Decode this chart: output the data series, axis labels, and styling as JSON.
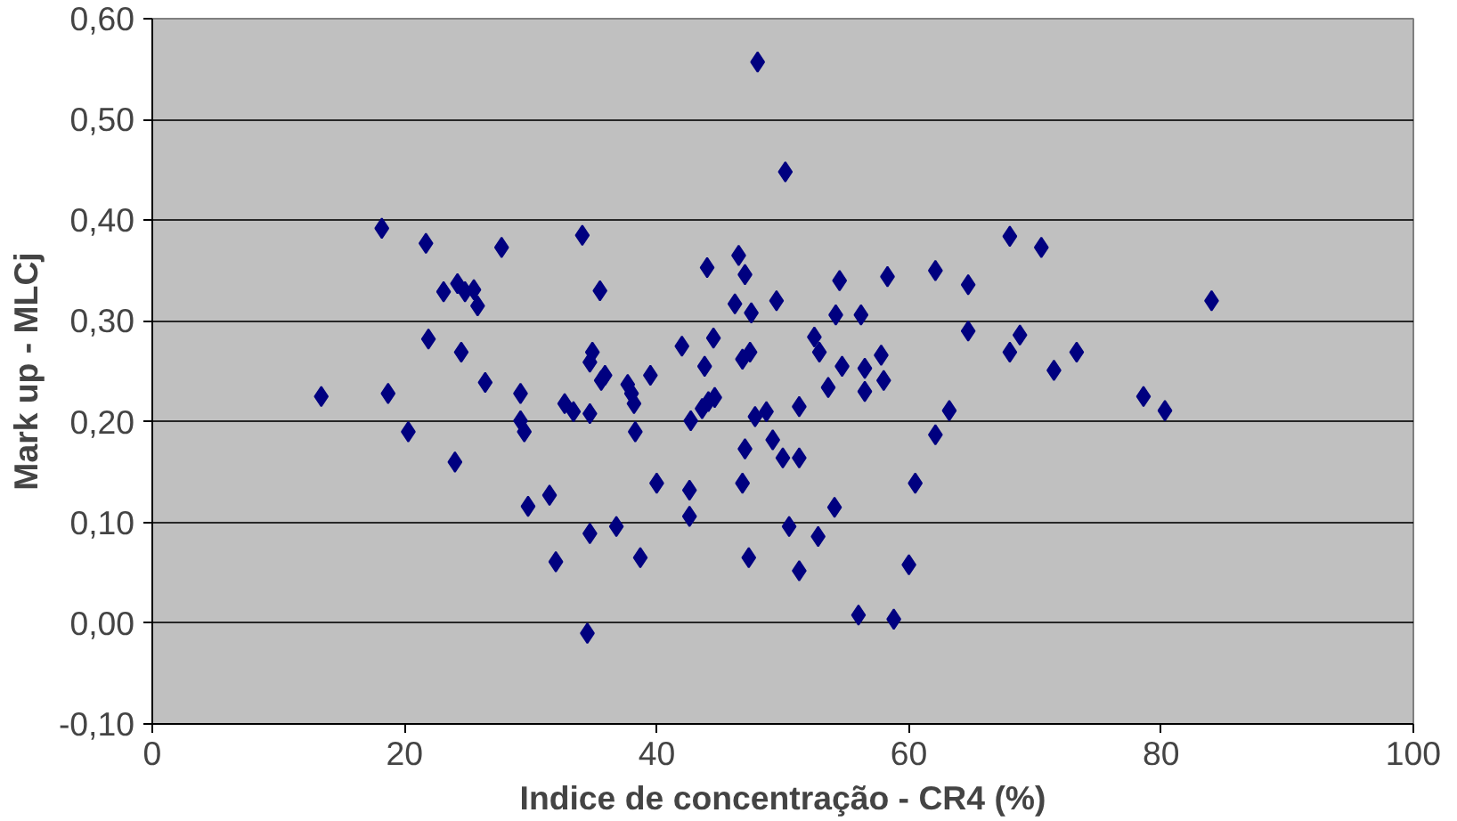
{
  "chart_data": {
    "type": "scatter",
    "xlabel": "Indice de concentração - CR4 (%)",
    "ylabel": "Mark up - MLCj",
    "xlim": [
      0,
      100
    ],
    "xticks": [
      0,
      20,
      40,
      60,
      80,
      100
    ],
    "ylim": [
      -0.1,
      0.6
    ],
    "yticks": [
      {
        "value": -0.1,
        "label": "-0,10"
      },
      {
        "value": 0,
        "label": "0,00"
      },
      {
        "value": 0.1,
        "label": "0,10"
      },
      {
        "value": 0.2,
        "label": "0,20"
      },
      {
        "value": 0.3,
        "label": "0,30"
      },
      {
        "value": 0.4,
        "label": "0,40"
      },
      {
        "value": 0.5,
        "label": "0,50"
      },
      {
        "value": 0.6,
        "label": "0,60"
      }
    ],
    "grid": "y",
    "marker": "diamond",
    "series": [
      {
        "color": "#000080",
        "x": [
          18.2,
          21.7,
          27.7,
          34.1,
          23.1,
          24.2,
          24.8,
          25.5,
          25.8,
          21.9,
          24.5,
          26.4,
          29.2,
          13.4,
          18.7,
          20.3,
          29.2,
          29.5,
          32.7,
          33.4,
          34.7,
          24.0,
          31.5,
          29.8,
          34.7,
          32.0,
          34.5,
          35.5,
          34.9,
          34.7,
          35.6,
          35.9,
          48.0,
          50.2,
          44.0,
          46.5,
          47.0,
          46.2,
          47.5,
          49.5,
          54.5,
          54.2,
          56.2,
          58.3,
          62.1,
          64.7,
          64.7,
          42.0,
          44.5,
          43.8,
          39.5,
          37.7,
          38.0,
          38.2,
          46.8,
          47.4,
          52.5,
          52.9,
          54.7,
          56.5,
          57.8,
          58.0,
          56.5,
          53.6,
          51.3,
          44.1,
          44.6,
          43.6,
          42.7,
          47.8,
          48.7,
          49.2,
          47.0,
          50.0,
          51.3,
          38.3,
          40.0,
          42.6,
          42.6,
          46.8,
          36.8,
          38.7,
          47.3,
          50.5,
          52.8,
          54.1,
          51.3,
          60.5,
          62.1,
          63.2,
          56.0,
          58.8,
          60.0,
          68.0,
          70.5,
          84.0,
          68.8,
          68.0,
          73.3,
          71.5,
          78.6,
          80.3
        ],
        "values": [
          0.392,
          0.377,
          0.373,
          0.385,
          0.329,
          0.337,
          0.329,
          0.331,
          0.315,
          0.282,
          0.269,
          0.239,
          0.228,
          0.225,
          0.228,
          0.19,
          0.201,
          0.19,
          0.218,
          0.21,
          0.208,
          0.16,
          0.127,
          0.116,
          0.089,
          0.061,
          -0.01,
          0.33,
          0.269,
          0.259,
          0.241,
          0.246,
          0.557,
          0.448,
          0.353,
          0.365,
          0.346,
          0.317,
          0.308,
          0.32,
          0.34,
          0.306,
          0.306,
          0.344,
          0.35,
          0.336,
          0.29,
          0.275,
          0.283,
          0.255,
          0.246,
          0.237,
          0.228,
          0.218,
          0.262,
          0.269,
          0.284,
          0.269,
          0.255,
          0.253,
          0.266,
          0.241,
          0.23,
          0.234,
          0.215,
          0.22,
          0.224,
          0.213,
          0.201,
          0.205,
          0.21,
          0.182,
          0.173,
          0.164,
          0.164,
          0.19,
          0.139,
          0.132,
          0.106,
          0.139,
          0.096,
          0.065,
          0.065,
          0.096,
          0.086,
          0.115,
          0.052,
          0.139,
          0.187,
          0.211,
          0.008,
          0.004,
          0.058,
          0.384,
          0.373,
          0.32,
          0.286,
          0.269,
          0.269,
          0.251,
          0.225,
          0.211
        ]
      }
    ]
  }
}
